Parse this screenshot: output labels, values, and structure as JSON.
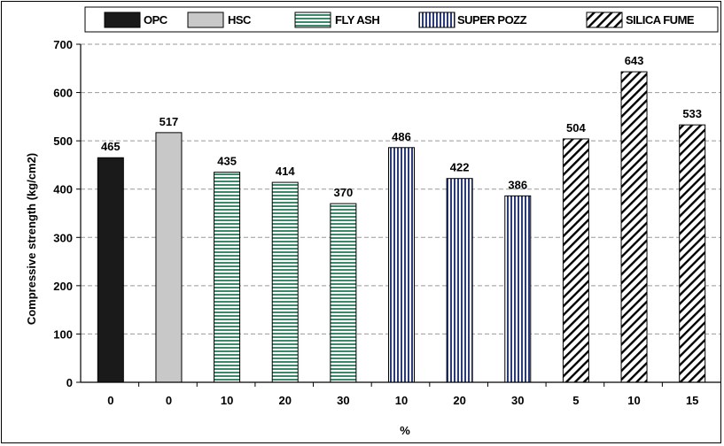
{
  "chart_data": {
    "type": "bar",
    "title": "",
    "xlabel": "%",
    "ylabel": "Compressive strength (kg/cm2)",
    "ylim": [
      0,
      700
    ],
    "yticks": [
      "0",
      "100",
      "200",
      "300",
      "400",
      "500",
      "600",
      "700"
    ],
    "grid": "horizontal dashed",
    "legend_position": "top",
    "series": [
      {
        "name": "OPC",
        "pattern": "solid-black",
        "fill": "#1a1a1a"
      },
      {
        "name": "HSC",
        "pattern": "solid-grey",
        "fill": "#c8c8c8"
      },
      {
        "name": "FLY ASH",
        "pattern": "horizontal-lines",
        "fill": "#3a8a6a"
      },
      {
        "name": "SUPER POZZ",
        "pattern": "vertical-lines",
        "fill": "#2a3a7a"
      },
      {
        "name": "SILICA FUME",
        "pattern": "diagonal-hatch",
        "fill": "#000000"
      }
    ],
    "bars": [
      {
        "category": "0",
        "series": "OPC",
        "value": 465,
        "label": "465"
      },
      {
        "category": "0",
        "series": "HSC",
        "value": 517,
        "label": "517"
      },
      {
        "category": "10",
        "series": "FLY ASH",
        "value": 435,
        "label": "435"
      },
      {
        "category": "20",
        "series": "FLY ASH",
        "value": 414,
        "label": "414"
      },
      {
        "category": "30",
        "series": "FLY ASH",
        "value": 370,
        "label": "370"
      },
      {
        "category": "10",
        "series": "SUPER POZZ",
        "value": 486,
        "label": "486"
      },
      {
        "category": "20",
        "series": "SUPER POZZ",
        "value": 422,
        "label": "422"
      },
      {
        "category": "30",
        "series": "SUPER POZZ",
        "value": 386,
        "label": "386"
      },
      {
        "category": "5",
        "series": "SILICA FUME",
        "value": 504,
        "label": "504"
      },
      {
        "category": "10",
        "series": "SILICA FUME",
        "value": 643,
        "label": "643"
      },
      {
        "category": "15",
        "series": "SILICA FUME",
        "value": 533,
        "label": "533"
      }
    ]
  },
  "legend": {
    "items": [
      "OPC",
      "HSC",
      "FLY ASH",
      "SUPER POZZ",
      "SILICA FUME"
    ]
  }
}
